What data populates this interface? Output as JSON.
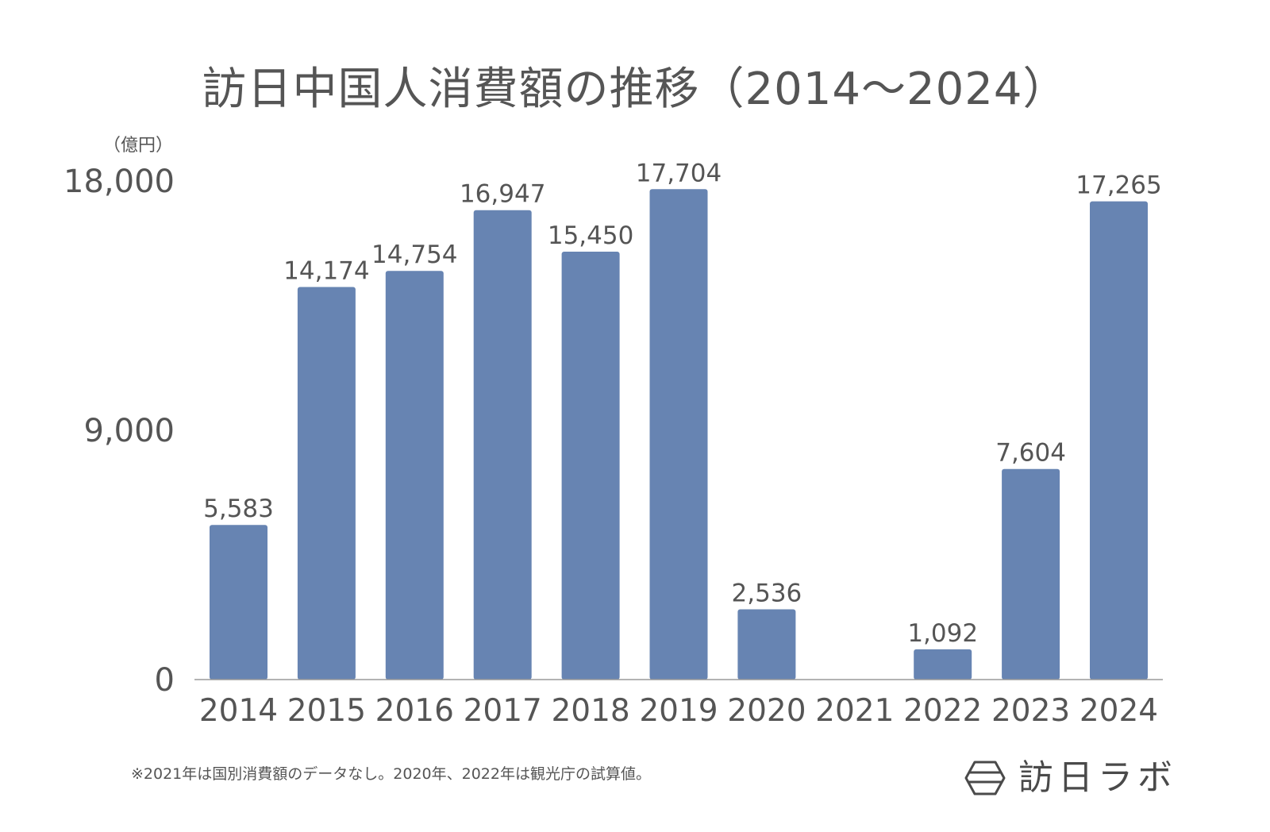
{
  "chart_data": {
    "type": "bar",
    "title": "訪日中国人消費額の推移（2014〜2024）",
    "ylabel": "（億円）",
    "xlabel": "",
    "ylim": [
      0,
      18000
    ],
    "yticks": [
      0,
      9000,
      18000
    ],
    "ytick_labels": [
      "0",
      "9,000",
      "18,000"
    ],
    "categories": [
      "2014",
      "2015",
      "2016",
      "2017",
      "2018",
      "2019",
      "2020",
      "2021",
      "2022",
      "2023",
      "2024"
    ],
    "values": [
      5583,
      14174,
      14754,
      16947,
      15450,
      17704,
      2536,
      null,
      1092,
      7604,
      17265
    ],
    "data_labels": [
      "5,583",
      "14,174",
      "14,754",
      "16,947",
      "15,450",
      "17,704",
      "2,536",
      "",
      "1,092",
      "7,604",
      "17,265"
    ],
    "bar_color": "#6784b2",
    "grid": false,
    "legend": "none"
  },
  "footnote": "※2021年は国別消費額のデータなし。2020年、2022年は観光庁の試算値。",
  "brand": {
    "name": "訪日ラボ",
    "icon": "hexagon-logo-icon"
  }
}
